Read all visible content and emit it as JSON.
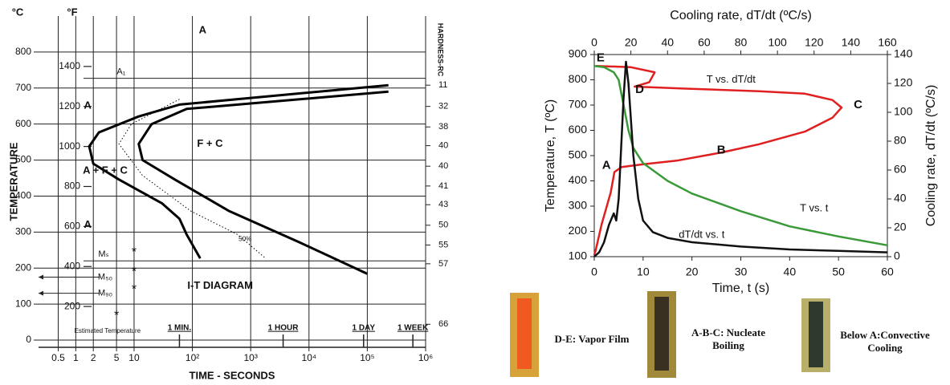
{
  "chart_data": [
    {
      "type": "line",
      "xscale": "log",
      "xlabel": "TIME - SECONDS",
      "ylabel": "TEMPERATURE",
      "y_unit": "°C",
      "y2_unit": "°F",
      "y3label": "HARDNESS-RC",
      "xlim": [
        0.23,
        1000000
      ],
      "xticks": [
        0.5,
        1,
        2,
        5,
        10,
        {
          "value": 100,
          "label": "10²"
        },
        {
          "value": 1000,
          "label": "10³"
        },
        {
          "value": 10000,
          "label": "10⁴"
        },
        {
          "value": 100000,
          "label": "10⁵"
        },
        {
          "value": 1000000,
          "label": "10⁶"
        }
      ],
      "x2ticks": [
        {
          "value": 60,
          "label": "1 MIN."
        },
        {
          "value": 3600,
          "label": "1 HOUR"
        },
        {
          "value": 86400,
          "label": "1 DAY"
        },
        {
          "value": 604800,
          "label": "1 WEEK"
        }
      ],
      "ylim": [
        -20,
        900
      ],
      "yticks": [
        0,
        100,
        200,
        300,
        400,
        500,
        600,
        700,
        800
      ],
      "y2lim": [
        -4,
        1652
      ],
      "y2ticks": [
        200,
        400,
        600,
        800,
        1000,
        1200,
        1400
      ],
      "y3ticks": [
        {
          "value": 708,
          "label": "11"
        },
        {
          "value": 649,
          "label": "32"
        },
        {
          "value": 592,
          "label": "38"
        },
        {
          "value": 540,
          "label": "40"
        },
        {
          "value": 483,
          "label": "40"
        },
        {
          "value": 428,
          "label": "41"
        },
        {
          "value": 376,
          "label": "43"
        },
        {
          "value": 319,
          "label": "50"
        },
        {
          "value": 264,
          "label": "55"
        },
        {
          "value": 212,
          "label": "57"
        },
        {
          "value": 44,
          "label": "66"
        }
      ],
      "grid": true,
      "series": [
        {
          "color": "#000000",
          "style": "solid",
          "x": [
            230000,
            60,
            12,
            2.5,
            1.7,
            2,
            5.5,
            30,
            60,
            80,
            136
          ],
          "values": [
            708,
            654,
            621,
            577,
            538,
            490,
            446,
            380,
            337,
            293,
            227
          ]
        },
        {
          "color": "#000000",
          "style": "solid",
          "x": [
            230000,
            80,
            20,
            12,
            14,
            50,
            430,
            7000,
            100000
          ],
          "values": [
            690,
            642,
            600,
            545,
            500,
            446,
            358,
            271,
            184
          ]
        },
        {
          "name": "50%",
          "color": "#000000",
          "style": "dotted",
          "x": [
            60,
            9,
            5.5,
            14,
            95,
            600,
            1800
          ],
          "values": [
            669,
            600,
            545,
            457,
            358,
            293,
            227
          ]
        }
      ],
      "levels": [
        {
          "value": 727,
          "label": "A₁"
        },
        {
          "value": 220,
          "label": "Mₛ"
        },
        {
          "value": 175,
          "label": "M₅₀"
        },
        {
          "value": 130,
          "label": "M₉₀"
        }
      ],
      "markers": {
        "name": "Estimated Temperature",
        "symbol": "*",
        "x": [
          10,
          10,
          10,
          5
        ],
        "values": [
          250,
          195,
          146,
          74
        ]
      },
      "annotations": [
        "A",
        "A",
        "F + C",
        "A + F + C",
        "A",
        "I-T DIAGRAM"
      ]
    },
    {
      "type": "line",
      "xlabel": "Time, t (s)",
      "ylabel": "Temperature, T (ºC)",
      "y2label": "Cooling rate, dT/dt (ºC/s)",
      "x2label": "Cooling rate, dT/dt (ºC/s)",
      "x2color": "#cc2244",
      "xlim": [
        0,
        60
      ],
      "xticks": [
        0,
        10,
        20,
        30,
        40,
        50,
        60
      ],
      "x2lim": [
        0,
        160
      ],
      "x2ticks": [
        0,
        20,
        40,
        60,
        80,
        100,
        120,
        140,
        160
      ],
      "ylim": [
        100,
        900
      ],
      "yticks": [
        100,
        200,
        300,
        400,
        500,
        600,
        700,
        800,
        900
      ],
      "y2lim": [
        0,
        140
      ],
      "y2ticks": [
        0,
        20,
        40,
        60,
        80,
        100,
        120,
        140
      ],
      "series": [
        {
          "name": "T vs. dT/dt",
          "color": "#e02020",
          "axis": "x2",
          "x": [
            1,
            20,
            33,
            30,
            22,
            50,
            90,
            115,
            130,
            135,
            130,
            115,
            90,
            70,
            45,
            26,
            15,
            11,
            9,
            4,
            1,
            0
          ],
          "values": [
            855,
            850,
            830,
            790,
            773,
            765,
            755,
            745,
            720,
            690,
            650,
            595,
            545,
            513,
            480,
            465,
            455,
            435,
            354,
            227,
            132,
            105
          ]
        },
        {
          "name": "T vs. t",
          "color": "#3a9a3a",
          "x": [
            0,
            2,
            4,
            5,
            6,
            7,
            8,
            10,
            15,
            20,
            30,
            40,
            50,
            60
          ],
          "values": [
            855,
            850,
            830,
            800,
            700,
            600,
            530,
            470,
            400,
            350,
            280,
            220,
            180,
            145
          ]
        },
        {
          "name": "dT/dt vs. t",
          "color": "#111111",
          "axis": "y2",
          "x": [
            0,
            1,
            2,
            3,
            4,
            4.5,
            5,
            6,
            6.5,
            7,
            8,
            9,
            10,
            12,
            15,
            20,
            30,
            40,
            50,
            60
          ],
          "values": [
            0,
            3,
            10,
            22,
            30,
            25,
            40,
            110,
            135,
            120,
            70,
            40,
            25,
            17,
            13,
            10,
            7,
            5,
            4,
            3
          ]
        }
      ],
      "annotations": [
        "A",
        "B",
        "C",
        "D",
        "E"
      ]
    }
  ],
  "photos": [
    {
      "caption": "D-E: Vapor Film"
    },
    {
      "caption": "A-B-C: Nucleate Boiling"
    },
    {
      "caption": "Below A:Convective Cooling"
    }
  ]
}
